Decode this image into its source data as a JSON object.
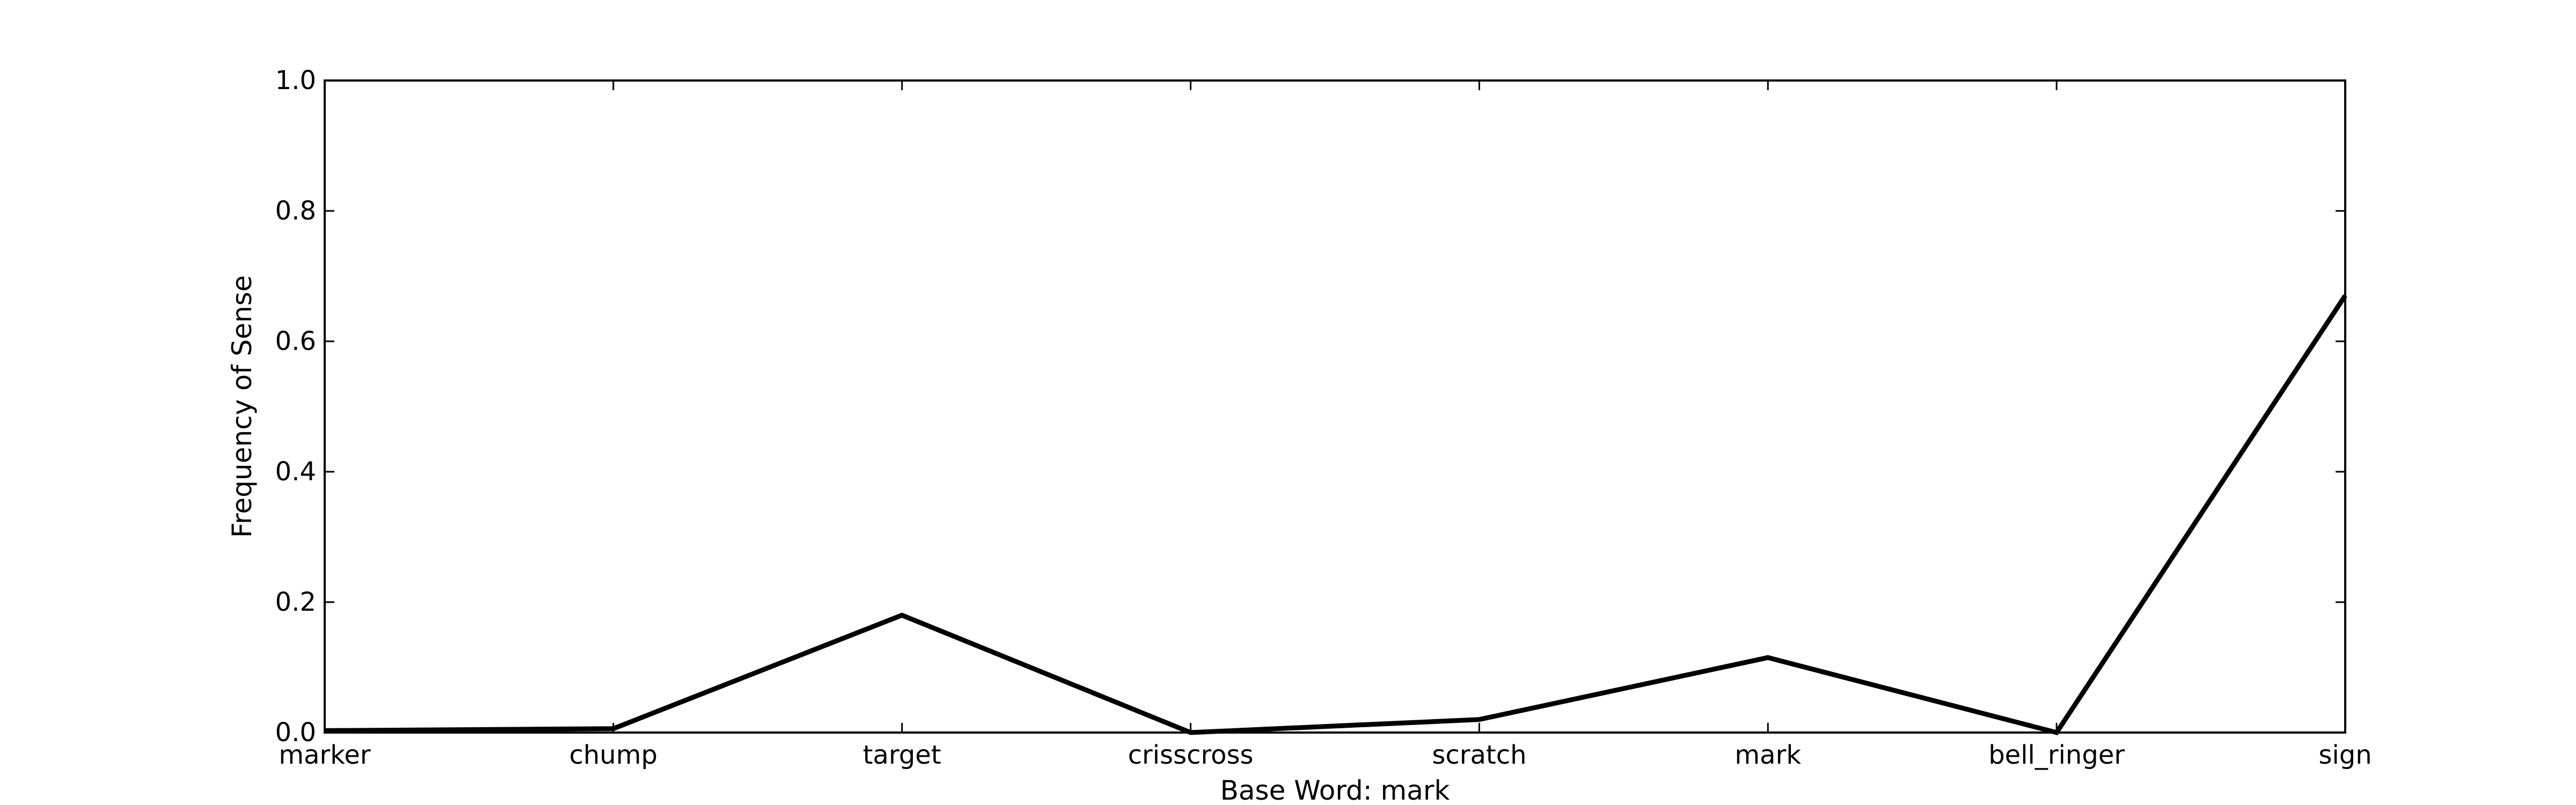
{
  "chart_data": {
    "type": "line",
    "title": "",
    "xlabel": "Base Word: mark",
    "ylabel": "Frequency of Sense",
    "categories": [
      "marker",
      "chump",
      "target",
      "crisscross",
      "scratch",
      "mark",
      "bell_ringer",
      "sign"
    ],
    "series": [
      {
        "values": [
          0.003,
          0.006,
          0.18,
          0.0,
          0.02,
          0.115,
          0.0,
          0.67
        ],
        "color": "#000000"
      }
    ],
    "ylim": [
      0.0,
      1.0
    ],
    "yticks": [
      "0.0",
      "0.2",
      "0.4",
      "0.6",
      "0.8",
      "1.0"
    ],
    "grid": false,
    "legend": "none"
  }
}
